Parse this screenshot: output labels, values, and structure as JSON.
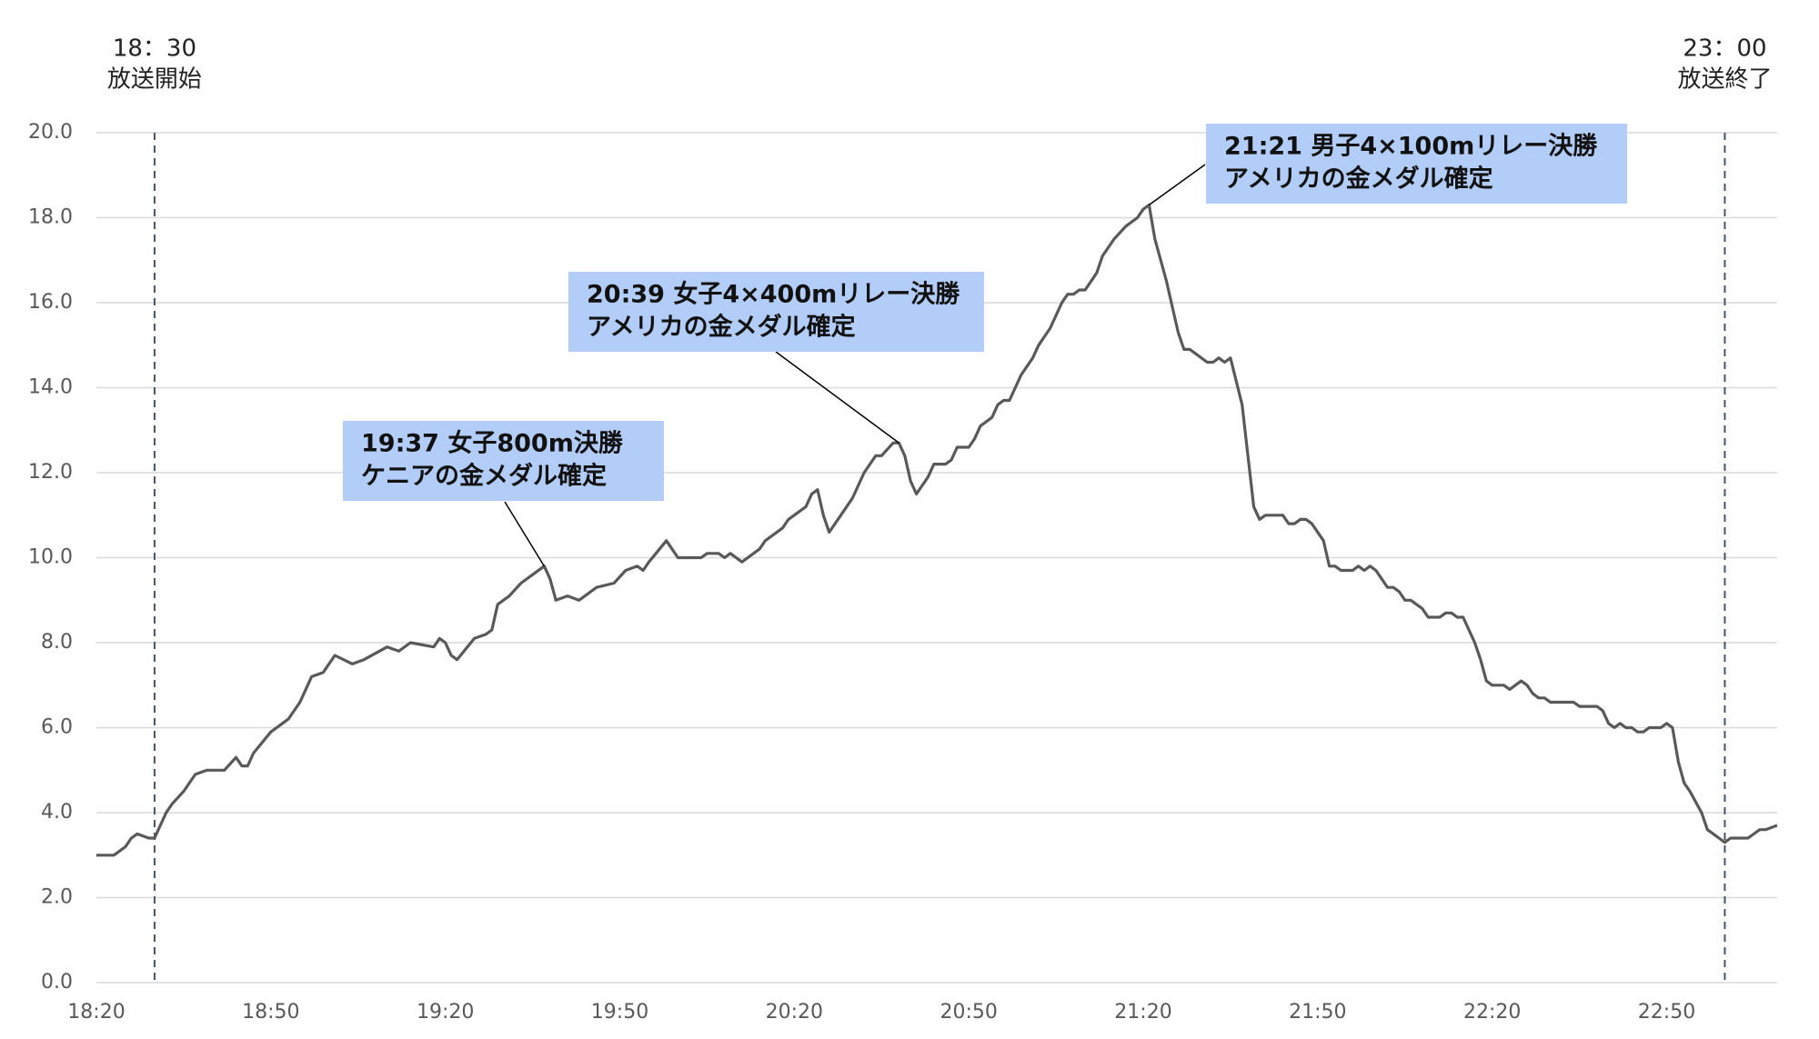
{
  "chart_data": {
    "type": "line",
    "x": [
      "18:20",
      "18:23",
      "18:25",
      "18:26",
      "18:27",
      "18:29",
      "18:30",
      "18:32",
      "18:33",
      "18:35",
      "18:37",
      "18:39",
      "18:42",
      "18:44",
      "18:45",
      "18:46",
      "18:47",
      "18:50",
      "18:53",
      "18:55",
      "18:57",
      "18:59",
      "19:01",
      "19:04",
      "19:06",
      "19:10",
      "19:12",
      "19:14",
      "19:18",
      "19:19",
      "19:20",
      "19:21",
      "19:22",
      "19:25",
      "19:27",
      "19:28",
      "19:29",
      "19:31",
      "19:33",
      "19:35",
      "19:37",
      "19:38",
      "19:39",
      "19:41",
      "19:43",
      "19:46",
      "19:49",
      "19:51",
      "19:53",
      "19:54",
      "19:55",
      "19:58",
      "20:00",
      "20:04",
      "20:05",
      "20:07",
      "20:08",
      "20:09",
      "20:11",
      "20:14",
      "20:15",
      "20:18",
      "20:19",
      "20:22",
      "20:23",
      "20:24",
      "20:25",
      "20:26",
      "20:28",
      "20:30",
      "20:32",
      "20:34",
      "20:35",
      "20:37",
      "20:38",
      "20:39",
      "20:40",
      "20:41",
      "20:43",
      "20:44",
      "20:46",
      "20:47",
      "20:48",
      "20:50",
      "20:51",
      "20:52",
      "20:54",
      "20:55",
      "20:56",
      "20:57",
      "20:59",
      "21:01",
      "21:02",
      "21:04",
      "21:06",
      "21:07",
      "21:08",
      "21:09",
      "21:10",
      "21:12",
      "21:13",
      "21:15",
      "21:17",
      "21:18",
      "21:19",
      "21:20",
      "21:21",
      "21:22",
      "21:24",
      "21:25",
      "21:26",
      "21:27",
      "21:28",
      "21:29",
      "21:31",
      "21:32",
      "21:33",
      "21:34",
      "21:35",
      "21:37",
      "21:38",
      "21:39",
      "21:40",
      "21:41",
      "21:44",
      "21:45",
      "21:46",
      "21:47",
      "21:48",
      "21:49",
      "21:51",
      "21:52",
      "21:53",
      "21:54",
      "21:56",
      "21:57",
      "21:58",
      "21:59",
      "22:00",
      "22:02",
      "22:03",
      "22:04",
      "22:05",
      "22:06",
      "22:08",
      "22:09",
      "22:11",
      "22:12",
      "22:13",
      "22:14",
      "22:15",
      "22:16",
      "22:17",
      "22:18",
      "22:19",
      "22:20",
      "22:22",
      "22:23",
      "22:25",
      "22:26",
      "22:27",
      "22:28",
      "22:29",
      "22:30",
      "22:34",
      "22:35",
      "22:38",
      "22:39",
      "22:40",
      "22:41",
      "22:42",
      "22:43",
      "22:44",
      "22:45",
      "22:46",
      "22:47",
      "22:49",
      "22:50",
      "22:51",
      "22:52",
      "22:53",
      "22:54",
      "22:56",
      "22:57",
      "22:59",
      "23:00",
      "23:01",
      "23:04",
      "23:06",
      "23:07",
      "23:09"
    ],
    "series": [
      {
        "color": "#595959",
        "values": [
          3.0,
          3.0,
          3.2,
          3.4,
          3.5,
          3.4,
          3.4,
          4.0,
          4.2,
          4.5,
          4.9,
          5.0,
          5.0,
          5.3,
          5.1,
          5.1,
          5.4,
          5.9,
          6.2,
          6.6,
          7.2,
          7.3,
          7.7,
          7.5,
          7.6,
          7.9,
          7.8,
          8.0,
          7.9,
          8.1,
          8.0,
          7.7,
          7.6,
          8.1,
          8.2,
          8.3,
          8.9,
          9.1,
          9.4,
          9.6,
          9.8,
          9.5,
          9.0,
          9.1,
          9.0,
          9.3,
          9.4,
          9.7,
          9.8,
          9.7,
          9.9,
          10.4,
          10.0,
          10.0,
          10.1,
          10.1,
          10.0,
          10.1,
          9.9,
          10.2,
          10.4,
          10.7,
          10.9,
          11.2,
          11.5,
          11.6,
          11.0,
          10.6,
          11.0,
          11.4,
          12.0,
          12.4,
          12.4,
          12.7,
          12.7,
          12.4,
          11.8,
          11.5,
          11.9,
          12.2,
          12.2,
          12.3,
          12.6,
          12.6,
          12.8,
          13.1,
          13.3,
          13.6,
          13.7,
          13.7,
          14.3,
          14.7,
          15.0,
          15.4,
          16.0,
          16.2,
          16.2,
          16.3,
          16.3,
          16.7,
          17.1,
          17.5,
          17.8,
          17.9,
          18.0,
          18.2,
          18.3,
          17.5,
          16.5,
          15.9,
          15.3,
          14.9,
          14.9,
          14.8,
          14.6,
          14.6,
          14.7,
          14.6,
          14.7,
          13.6,
          12.4,
          11.2,
          10.9,
          11.0,
          11.0,
          10.8,
          10.8,
          10.9,
          10.9,
          10.8,
          10.4,
          9.8,
          9.8,
          9.7,
          9.7,
          9.8,
          9.7,
          9.8,
          9.7,
          9.3,
          9.3,
          9.2,
          9.0,
          9.0,
          8.8,
          8.6,
          8.6,
          8.7,
          8.7,
          8.6,
          8.6,
          8.3,
          8.0,
          7.6,
          7.1,
          7.0,
          7.0,
          6.9,
          7.1,
          7.0,
          6.8,
          6.7,
          6.7,
          6.6,
          6.6,
          6.5,
          6.5,
          6.4,
          6.1,
          6.0,
          6.1,
          6.0,
          6.0,
          5.9,
          5.9,
          6.0,
          6.0,
          6.1,
          6.0,
          5.2,
          4.7,
          4.5,
          4.0,
          3.6,
          3.4,
          3.3,
          3.4,
          3.4,
          3.6,
          3.6,
          3.7
        ]
      }
    ],
    "xlim": [
      "18:20",
      "23:09"
    ],
    "xticks": [
      "18:20",
      "18:50",
      "19:20",
      "19:50",
      "20:20",
      "20:50",
      "21:20",
      "21:50",
      "22:20",
      "22:50"
    ],
    "ylim": [
      0,
      20
    ],
    "yticks": [
      {
        "value": 0,
        "label": "0.0"
      },
      {
        "value": 2,
        "label": "2.0"
      },
      {
        "value": 4,
        "label": "4.0"
      },
      {
        "value": 6,
        "label": "6.0"
      },
      {
        "value": 8,
        "label": "8.0"
      },
      {
        "value": 10,
        "label": "10.0"
      },
      {
        "value": 12,
        "label": "12.0"
      },
      {
        "value": 14,
        "label": "14.0"
      },
      {
        "value": 16,
        "label": "16.0"
      },
      {
        "value": 18,
        "label": "18.0"
      },
      {
        "value": 20,
        "label": "20.0"
      }
    ],
    "grid": true,
    "markers": [
      {
        "x": "18:30",
        "label": "18：30",
        "note": "放送開始"
      },
      {
        "x": "23:00",
        "label": "23：00",
        "note": "放送終了"
      }
    ],
    "annotations": [
      {
        "x": "19:37",
        "y": 9.8,
        "lines": [
          "19:37 女子800m決勝",
          "ケニアの金メダル確定"
        ]
      },
      {
        "x": "20:38",
        "y": 12.7,
        "lines": [
          "20:39 女子4×400mリレー決勝",
          "アメリカの金メダル確定"
        ]
      },
      {
        "x": "21:21",
        "y": 18.3,
        "lines": [
          "21:21 男子4×100mリレー決勝",
          "アメリカの金メダル確定"
        ]
      }
    ],
    "annotation_color": "#b1cdf8"
  }
}
